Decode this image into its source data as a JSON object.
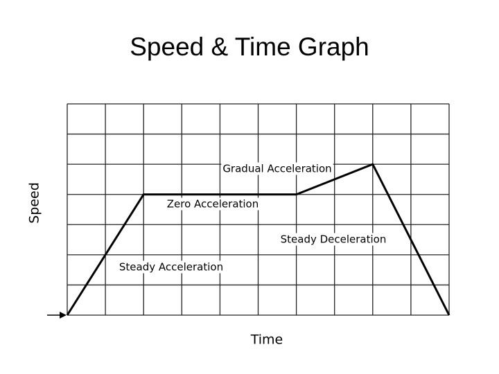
{
  "chart_data": {
    "type": "line",
    "title": "Speed & Time Graph",
    "x_label": "Time",
    "y_label": "Speed",
    "x": [
      0,
      2,
      6,
      8,
      10
    ],
    "values": [
      0,
      4,
      4,
      5,
      0
    ],
    "color": "#000000",
    "xlim": [
      0,
      10
    ],
    "ylim": [
      0,
      7
    ],
    "xticks": [
      0,
      1,
      2,
      3,
      4,
      5,
      6,
      7,
      8,
      9,
      10
    ],
    "yticks": [
      0,
      1,
      2,
      3,
      4,
      5,
      6,
      7
    ],
    "grid": true,
    "annotations": [
      "Gradual Acceleration",
      "Zero Acceleration",
      "Steady Deceleration",
      "Steady Acceleration"
    ]
  }
}
